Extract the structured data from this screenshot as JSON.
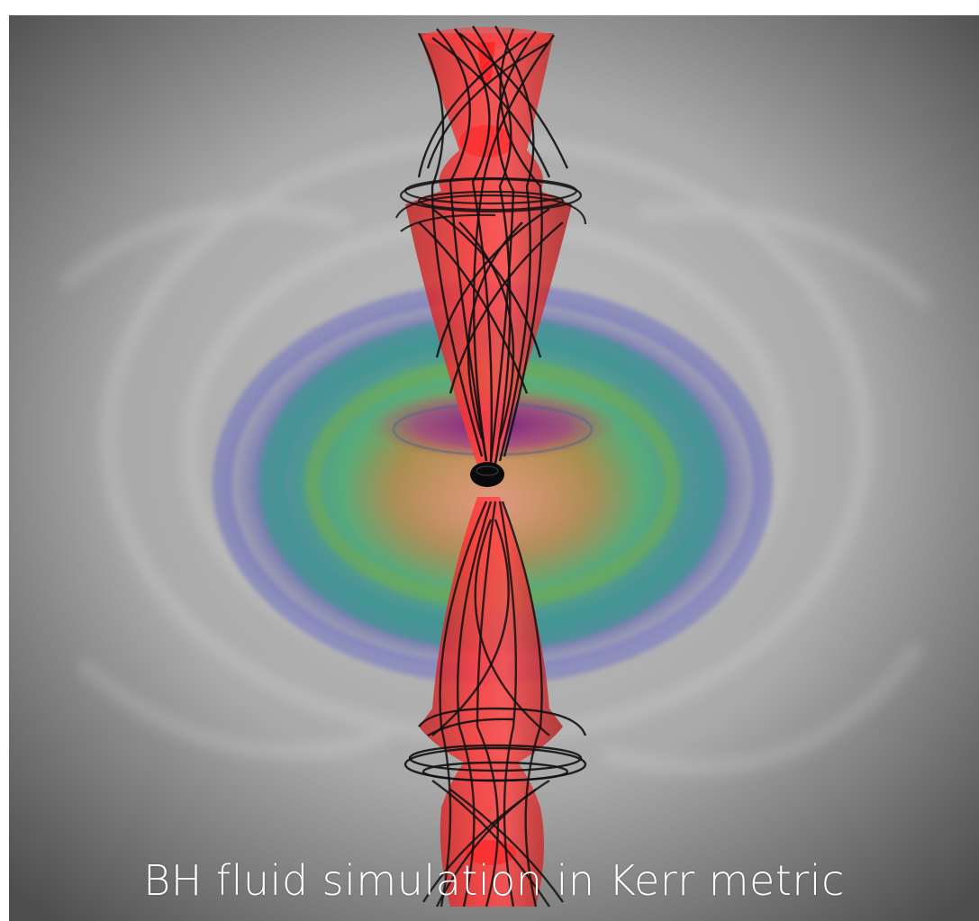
{
  "caption": "BH fluid simulation in Kerr metric",
  "colors": {
    "background_center": "#b9b9b9",
    "background_edge": "#545454",
    "jet": "#ff1a1a",
    "field_lines": "#111111",
    "torus_outer": "#6b6fbf",
    "torus_mid": "#2e9b8a",
    "torus_inner": "#d9a060",
    "torus_core": "#a0308a"
  },
  "icons": [
    "black-hole-icon"
  ]
}
